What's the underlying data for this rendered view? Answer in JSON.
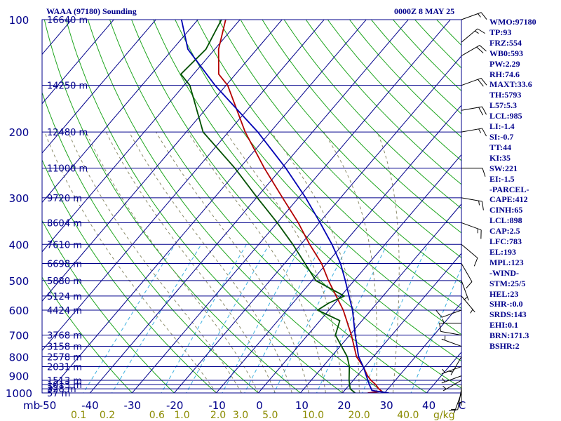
{
  "header": {
    "title": "WAAA (97180) Sounding",
    "timestamp": "0000Z  8 MAY 25"
  },
  "indices": [
    "WMO:97180",
    "TP:93",
    "FRZ:554",
    "WB0:593",
    "PW:2.29",
    "RH:74.6",
    "MAXT:33.6",
    "TH:5793",
    "L57:5.3",
    "LCL:985",
    "LI:-1.4",
    "SI:-0.7",
    "TT:44",
    "KI:35",
    "SW:221",
    "EI:-1.5",
    "-PARCEL-",
    "CAPE:412",
    "CINH:65",
    "LCL:898",
    "CAP:2.5",
    "LFC:783",
    "EL:193",
    "MPL:123",
    "-WIND-",
    "STM:25/5",
    "HEL:23",
    "SHR-:0.0",
    "SRDS:143",
    "EHI:0.1",
    "BRN:171.3",
    "BSHR:2"
  ],
  "colors": {
    "frame": "#00008b",
    "isobar": "#00008b",
    "isotherm": "#00008b",
    "dry_adiabat": "#1ea51e",
    "moist_adiabat": "#8b8b6a",
    "mixing_ratio": "#3cb0e0",
    "temperature": "#b40000",
    "dewpoint": "#005000",
    "parcel": "#0000b4",
    "wind_barb": "#000000",
    "p_label": "#00008b",
    "t_label": "#00008b",
    "w_label": "#8b8b00"
  },
  "chart_data": {
    "type": "skew-t log-p sounding",
    "pressure_axis": {
      "label": "mb",
      "unit": "hPa",
      "range": [
        1000,
        100
      ],
      "scale": "log",
      "ticks": [
        1000,
        900,
        800,
        700,
        600,
        500,
        400,
        300,
        200,
        100
      ]
    },
    "temperature_axis": {
      "unit": "C",
      "range": [
        -50,
        50
      ],
      "ticks": [
        -50,
        -40,
        -30,
        -20,
        -10,
        0,
        10,
        20,
        30,
        40
      ],
      "tick_labels": [
        "-50",
        "-40",
        "-30",
        "-20",
        "-10",
        "0",
        "10",
        "20",
        "30",
        "40"
      ]
    },
    "mixing_ratio_axis": {
      "label": "g/kg",
      "ticks": [
        0.1,
        0.2,
        0.6,
        1.0,
        2.0,
        3.0,
        5.0,
        10.0,
        20.0,
        40.0
      ],
      "tick_labels": [
        "0.1",
        "0.2",
        "0.6",
        "1.0",
        "2.0",
        "3.0",
        "5.0",
        "10.0",
        "20.0",
        "40.0"
      ]
    },
    "mandatory_levels": [
      {
        "p": 1000,
        "label": "57 m"
      },
      {
        "p": 975,
        "label": "328 m"
      },
      {
        "p": 950,
        "label": "1013 m"
      },
      {
        "p": 925,
        "label": "1513 m"
      },
      {
        "p": 850,
        "label": "2031 m"
      },
      {
        "p": 800,
        "label": "2578 m"
      },
      {
        "p": 750,
        "label": "3158 m"
      },
      {
        "p": 700,
        "label": "3768 m"
      },
      {
        "p": 600,
        "label": "4424 m"
      },
      {
        "p": 550,
        "label": "5124 m"
      },
      {
        "p": 500,
        "label": "5880 m"
      },
      {
        "p": 450,
        "label": "6698 m"
      },
      {
        "p": 400,
        "label": "7610 m"
      },
      {
        "p": 350,
        "label": "8604 m"
      },
      {
        "p": 300,
        "label": "9720 m"
      },
      {
        "p": 250,
        "label": "11000 m"
      },
      {
        "p": 200,
        "label": "12480 m"
      },
      {
        "p": 150,
        "label": "14250 m"
      },
      {
        "p": 100,
        "label": "16640 m"
      }
    ],
    "dry_adiabats_thetaC": [
      -30,
      -20,
      -10,
      0,
      10,
      20,
      30,
      40,
      50,
      60,
      70,
      80,
      90,
      100,
      110,
      120,
      130,
      140,
      150,
      160,
      170,
      180,
      190
    ],
    "moist_adiabats_C": [
      -10,
      -4,
      0,
      4,
      8,
      12,
      16,
      20,
      24,
      28,
      32
    ],
    "mixing_ratio_lines_gkg": [
      0.1,
      0.2,
      0.6,
      1.0,
      2.0,
      3.0,
      5.0,
      10.0,
      20.0,
      40.0
    ],
    "series": [
      {
        "name": "temperature",
        "points": [
          {
            "p": 1000,
            "t": 26.0
          },
          {
            "p": 990,
            "t": 29.0
          },
          {
            "p": 975,
            "t": 27.8
          },
          {
            "p": 950,
            "t": 26.2
          },
          {
            "p": 925,
            "t": 24.2
          },
          {
            "p": 900,
            "t": 22.5
          },
          {
            "p": 850,
            "t": 19.6
          },
          {
            "p": 800,
            "t": 16.0
          },
          {
            "p": 700,
            "t": 10.4
          },
          {
            "p": 600,
            "t": 3.4
          },
          {
            "p": 500,
            "t": -6.1
          },
          {
            "p": 450,
            "t": -11.2
          },
          {
            "p": 400,
            "t": -17.9
          },
          {
            "p": 350,
            "t": -25.0
          },
          {
            "p": 300,
            "t": -33.8
          },
          {
            "p": 250,
            "t": -44.1
          },
          {
            "p": 200,
            "t": -56.0
          },
          {
            "p": 150,
            "t": -69.6
          },
          {
            "p": 140,
            "t": -74.0
          },
          {
            "p": 120,
            "t": -79.1
          },
          {
            "p": 100,
            "t": -83.4
          }
        ]
      },
      {
        "name": "dewpoint",
        "points": [
          {
            "p": 1000,
            "t": 23.0
          },
          {
            "p": 975,
            "t": 21.0
          },
          {
            "p": 925,
            "t": 19.0
          },
          {
            "p": 850,
            "t": 16.3
          },
          {
            "p": 800,
            "t": 13.8
          },
          {
            "p": 700,
            "t": 6.6
          },
          {
            "p": 640,
            "t": 4.7
          },
          {
            "p": 600,
            "t": -2.7
          },
          {
            "p": 575,
            "t": -1.5
          },
          {
            "p": 550,
            "t": 0.8
          },
          {
            "p": 500,
            "t": -9.1
          },
          {
            "p": 400,
            "t": -21.9
          },
          {
            "p": 350,
            "t": -30.0
          },
          {
            "p": 300,
            "t": -39.8
          },
          {
            "p": 250,
            "t": -51.1
          },
          {
            "p": 200,
            "t": -66.0
          },
          {
            "p": 150,
            "t": -78.6
          },
          {
            "p": 140,
            "t": -83.0
          },
          {
            "p": 120,
            "t": -82.1
          },
          {
            "p": 100,
            "t": -84.4
          }
        ]
      },
      {
        "name": "parcel",
        "points": [
          {
            "p": 1000,
            "t": 31.0
          },
          {
            "p": 985,
            "t": 26.5
          },
          {
            "p": 950,
            "t": 24.7
          },
          {
            "p": 900,
            "t": 22.2
          },
          {
            "p": 850,
            "t": 19.6
          },
          {
            "p": 800,
            "t": 16.5
          },
          {
            "p": 700,
            "t": 11.3
          },
          {
            "p": 600,
            "t": 5.6
          },
          {
            "p": 500,
            "t": -2.1
          },
          {
            "p": 450,
            "t": -6.7
          },
          {
            "p": 400,
            "t": -12.6
          },
          {
            "p": 350,
            "t": -19.8
          },
          {
            "p": 300,
            "t": -28.3
          },
          {
            "p": 250,
            "t": -39.0
          },
          {
            "p": 200,
            "t": -53.0
          },
          {
            "p": 150,
            "t": -72.6
          },
          {
            "p": 120,
            "t": -86.4
          },
          {
            "p": 100,
            "t": -93.9
          }
        ]
      }
    ],
    "wind_barbs": [
      {
        "p": 1000,
        "dir": 200,
        "kt": 5
      },
      {
        "p": 975,
        "dir": 190,
        "kt": 10
      },
      {
        "p": 950,
        "dir": 180,
        "kt": 5
      },
      {
        "p": 925,
        "dir": 240,
        "kt": 5
      },
      {
        "p": 900,
        "dir": 250,
        "kt": 5
      },
      {
        "p": 850,
        "dir": 250,
        "kt": 5
      },
      {
        "p": 800,
        "dir": 210,
        "kt": 5
      },
      {
        "p": 750,
        "dir": 290,
        "kt": 5
      },
      {
        "p": 700,
        "dir": 280,
        "kt": 10
      },
      {
        "p": 650,
        "dir": 270,
        "kt": 5
      },
      {
        "p": 600,
        "dir": 250,
        "kt": 10
      },
      {
        "p": 550,
        "dir": 140,
        "kt": 5
      },
      {
        "p": 500,
        "dir": 160,
        "kt": 5
      },
      {
        "p": 450,
        "dir": 150,
        "kt": 10
      },
      {
        "p": 400,
        "dir": 130,
        "kt": 10
      },
      {
        "p": 350,
        "dir": 110,
        "kt": 15
      },
      {
        "p": 300,
        "dir": 100,
        "kt": 15
      },
      {
        "p": 250,
        "dir": 90,
        "kt": 10
      },
      {
        "p": 200,
        "dir": 80,
        "kt": 15
      },
      {
        "p": 175,
        "dir": 80,
        "kt": 20
      },
      {
        "p": 150,
        "dir": 70,
        "kt": 20
      },
      {
        "p": 125,
        "dir": 60,
        "kt": 20
      },
      {
        "p": 115,
        "dir": 50,
        "kt": 15
      },
      {
        "p": 100,
        "dir": 70,
        "kt": 15
      }
    ]
  }
}
